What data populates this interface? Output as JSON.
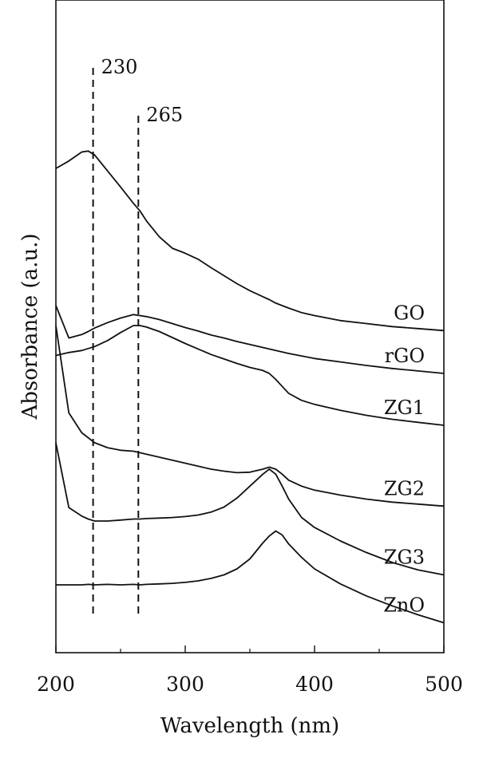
{
  "chart_data": {
    "type": "line",
    "xlabel": "Wavelength (nm)",
    "ylabel": "Absorbance (a.u.)",
    "xlim": [
      200,
      500
    ],
    "x_ticks": [
      200,
      300,
      400,
      500
    ],
    "y_scale": "arbitrary units, stacked (offset) curves, no tick labels",
    "grid": false,
    "legend": "labels placed at the right end of each curve",
    "reference_lines": [
      {
        "x": 230,
        "label": "230"
      },
      {
        "x": 265,
        "label": "265"
      }
    ],
    "series_x": [
      200,
      210,
      220,
      225,
      230,
      240,
      250,
      260,
      265,
      270,
      280,
      290,
      300,
      310,
      320,
      330,
      340,
      350,
      360,
      365,
      370,
      375,
      380,
      390,
      400,
      420,
      440,
      460,
      480,
      500
    ],
    "series": [
      {
        "name": "GO",
        "values": [
          8.35,
          8.5,
          8.68,
          8.7,
          8.62,
          8.3,
          7.98,
          7.65,
          7.5,
          7.3,
          6.98,
          6.75,
          6.65,
          6.53,
          6.36,
          6.2,
          6.04,
          5.9,
          5.78,
          5.72,
          5.65,
          5.6,
          5.55,
          5.46,
          5.4,
          5.3,
          5.24,
          5.18,
          5.14,
          5.1
        ]
      },
      {
        "name": "rGO",
        "values": [
          5.6,
          4.95,
          5.02,
          5.08,
          5.15,
          5.26,
          5.35,
          5.42,
          5.4,
          5.38,
          5.32,
          5.24,
          5.16,
          5.09,
          5.01,
          4.95,
          4.88,
          4.82,
          4.76,
          4.73,
          4.7,
          4.67,
          4.64,
          4.59,
          4.54,
          4.47,
          4.4,
          4.34,
          4.29,
          4.24
        ]
      },
      {
        "name": "ZG1",
        "values": [
          4.6,
          4.66,
          4.7,
          4.74,
          4.78,
          4.9,
          5.06,
          5.2,
          5.2,
          5.17,
          5.08,
          4.96,
          4.84,
          4.73,
          4.62,
          4.53,
          4.44,
          4.36,
          4.3,
          4.24,
          4.12,
          3.98,
          3.84,
          3.7,
          3.62,
          3.5,
          3.4,
          3.32,
          3.26,
          3.2
        ]
      },
      {
        "name": "ZG2",
        "values": [
          5.2,
          3.45,
          3.05,
          2.95,
          2.85,
          2.75,
          2.7,
          2.68,
          2.65,
          2.62,
          2.56,
          2.5,
          2.44,
          2.38,
          2.32,
          2.28,
          2.25,
          2.26,
          2.32,
          2.36,
          2.32,
          2.22,
          2.1,
          1.98,
          1.9,
          1.8,
          1.72,
          1.66,
          1.62,
          1.58
        ]
      },
      {
        "name": "ZG3",
        "values": [
          2.85,
          1.55,
          1.38,
          1.32,
          1.28,
          1.28,
          1.3,
          1.32,
          1.32,
          1.33,
          1.34,
          1.35,
          1.37,
          1.4,
          1.46,
          1.56,
          1.74,
          1.98,
          2.22,
          2.32,
          2.22,
          1.98,
          1.72,
          1.35,
          1.15,
          0.88,
          0.65,
          0.45,
          0.3,
          0.2
        ]
      },
      {
        "name": "ZnO",
        "values": [
          0.0,
          0.0,
          0.0,
          0.01,
          0.0,
          0.01,
          0.0,
          0.01,
          0.0,
          0.01,
          0.02,
          0.03,
          0.05,
          0.08,
          0.13,
          0.2,
          0.32,
          0.52,
          0.84,
          0.98,
          1.08,
          1.0,
          0.82,
          0.55,
          0.32,
          0.02,
          -0.22,
          -0.42,
          -0.6,
          -0.76
        ]
      }
    ]
  }
}
